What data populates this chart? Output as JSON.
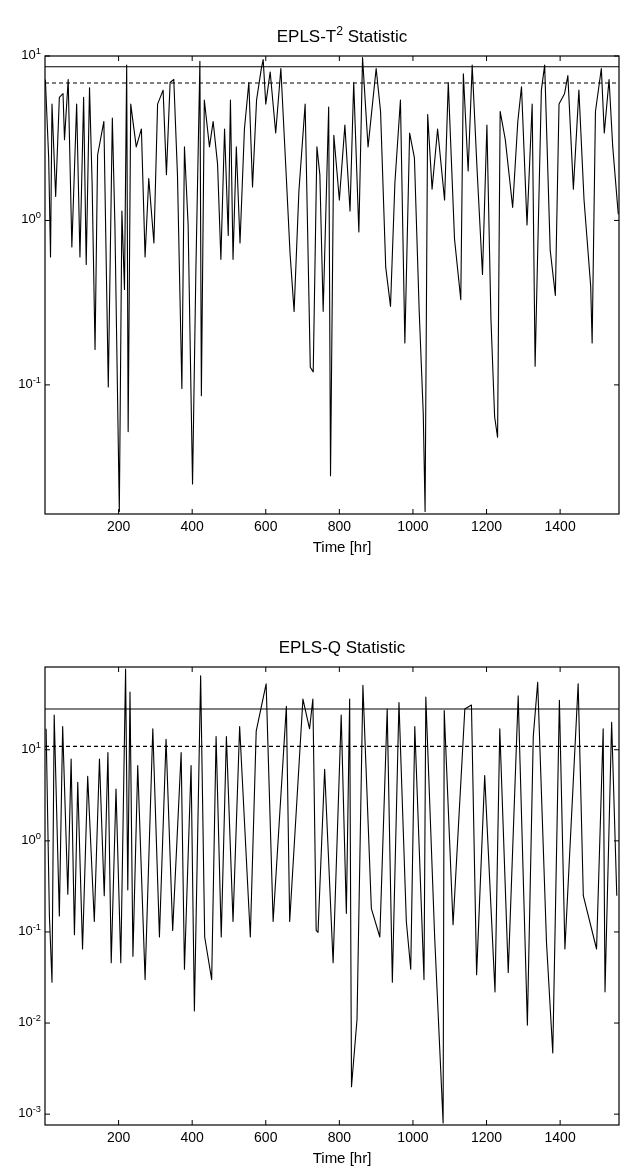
{
  "chart_data": [
    {
      "type": "line",
      "title": "EPLS-T$^{2}$ Statistic",
      "xlabel": "Time [hr]",
      "log": "y",
      "xlim": [
        0,
        1560
      ],
      "ylim": [
        0.0164,
        10
      ],
      "xticks": [
        200,
        400,
        600,
        800,
        1000,
        1200,
        1400
      ],
      "yticks": [
        {
          "value": 0.1,
          "label": "10$^{-1}$"
        },
        {
          "value": 1,
          "label": "10$^{0}$"
        },
        {
          "value": 10,
          "label": "10$^{1}$"
        }
      ],
      "grid": false,
      "marker": "none",
      "ref_lines": [
        {
          "axis": "y",
          "value": 8.6,
          "line_style": "solid",
          "color": "#000000"
        },
        {
          "axis": "y",
          "value": 6.85,
          "line_style": "dashed",
          "color": "#000000"
        }
      ],
      "series": [
        {
          "color": "#000000",
          "x": [
            1,
            10,
            15,
            19,
            29,
            39,
            49,
            53,
            63,
            73,
            86,
            95,
            105,
            112,
            121,
            128,
            136,
            143,
            160,
            172,
            183,
            190,
            202,
            209,
            216,
            222,
            226,
            233,
            248,
            262,
            272,
            282,
            296,
            306,
            321,
            330,
            340,
            350,
            360,
            372,
            379,
            389,
            401,
            410,
            421,
            425,
            433,
            447,
            457,
            469,
            478,
            488,
            498,
            504,
            511,
            520,
            530,
            542,
            554,
            564,
            575,
            588,
            593,
            600,
            612,
            627,
            641,
            656,
            666,
            677,
            690,
            707,
            721,
            729,
            739,
            747,
            756,
            771,
            776,
            785,
            800,
            815,
            829,
            839,
            853,
            863,
            878,
            900,
            912,
            926,
            939,
            951,
            966,
            978,
            991,
            1004,
            1017,
            1028,
            1033,
            1040,
            1052,
            1067,
            1086,
            1096,
            1113,
            1130,
            1137,
            1150,
            1161,
            1174,
            1189,
            1201,
            1212,
            1222,
            1230,
            1237,
            1251,
            1271,
            1285,
            1295,
            1310,
            1324,
            1332,
            1349,
            1358,
            1373,
            1387,
            1397,
            1412,
            1421,
            1436,
            1451,
            1465,
            1483,
            1487,
            1496,
            1512,
            1520,
            1533,
            1543,
            1558
          ],
          "values": [
            7.2,
            2.4,
            0.6,
            5.1,
            1.4,
            5.6,
            5.9,
            3.1,
            7.2,
            0.69,
            5.1,
            0.6,
            5.6,
            0.54,
            6.4,
            1.7,
            0.164,
            2.5,
            4.0,
            0.097,
            4.2,
            0.94,
            0.017,
            1.14,
            0.38,
            8.8,
            0.052,
            5.1,
            2.8,
            3.6,
            0.6,
            1.8,
            0.73,
            5.1,
            6.2,
            1.9,
            6.9,
            7.2,
            1.9,
            0.095,
            2.8,
            0.94,
            0.025,
            0.49,
            9.3,
            0.086,
            5.4,
            2.8,
            4.0,
            2.2,
            0.58,
            3.6,
            0.81,
            5.4,
            0.58,
            2.8,
            0.73,
            3.6,
            6.9,
            1.6,
            5.4,
            8.4,
            9.5,
            5.1,
            8.0,
            3.4,
            8.4,
            1.8,
            0.63,
            0.28,
            1.5,
            5.1,
            0.128,
            0.12,
            2.8,
            1.9,
            0.28,
            4.9,
            0.028,
            3.3,
            1.33,
            3.8,
            1.14,
            6.9,
            0.85,
            9.8,
            2.8,
            8.4,
            4.6,
            0.52,
            0.3,
            1.7,
            5.4,
            0.18,
            3.4,
            2.4,
            0.28,
            0.067,
            0.017,
            4.4,
            1.55,
            3.6,
            1.33,
            6.9,
            0.77,
            0.33,
            7.8,
            2.0,
            8.8,
            2.1,
            0.47,
            3.8,
            0.25,
            0.064,
            0.048,
            4.6,
            3.1,
            1.2,
            4.0,
            6.5,
            0.94,
            5.1,
            0.13,
            6.2,
            8.8,
            0.66,
            0.35,
            5.1,
            5.9,
            7.6,
            1.55,
            6.2,
            1.33,
            0.4,
            0.18,
            4.6,
            8.4,
            3.4,
            7.2,
            2.8,
            1.09
          ]
        }
      ]
    },
    {
      "type": "line",
      "title": "EPLS-Q Statistic",
      "xlabel": "Time [hr]",
      "log": "y",
      "xlim": [
        0,
        1560
      ],
      "ylim": [
        0.00076,
        81
      ],
      "xticks": [
        200,
        400,
        600,
        800,
        1000,
        1200,
        1400
      ],
      "yticks": [
        {
          "value": 0.001,
          "label": "10$^{-3}$"
        },
        {
          "value": 0.01,
          "label": "10$^{-2}$"
        },
        {
          "value": 0.1,
          "label": "10$^{-1}$"
        },
        {
          "value": 1,
          "label": "10$^{0}$"
        },
        {
          "value": 10,
          "label": "10$^{1}$"
        }
      ],
      "grid": false,
      "marker": "none",
      "ref_lines": [
        {
          "axis": "y",
          "value": 28,
          "line_style": "solid",
          "color": "#000000"
        },
        {
          "axis": "y",
          "value": 10.9,
          "line_style": "dashed",
          "color": "#000000"
        }
      ],
      "series": [
        {
          "color": "#000000",
          "x": [
            3,
            12,
            19,
            25,
            39,
            48,
            62,
            71,
            80,
            89,
            102,
            116,
            134,
            148,
            161,
            171,
            180,
            193,
            206,
            219,
            225,
            231,
            239,
            252,
            272,
            293,
            311,
            329,
            347,
            370,
            379,
            397,
            406,
            423,
            434,
            453,
            465,
            479,
            493,
            511,
            529,
            558,
            574,
            601,
            620,
            656,
            665,
            701,
            719,
            728,
            737,
            742,
            760,
            783,
            805,
            819,
            828,
            833,
            848,
            864,
            887,
            910,
            930,
            944,
            962,
            982,
            994,
            1005,
            1030,
            1035,
            1059,
            1082,
            1085,
            1109,
            1141,
            1159,
            1173,
            1195,
            1223,
            1236,
            1259,
            1286,
            1311,
            1327,
            1339,
            1363,
            1380,
            1398,
            1413,
            1449,
            1463,
            1499,
            1517,
            1522,
            1540,
            1554
          ],
          "values": [
            17,
            0.15,
            0.028,
            24,
            0.15,
            18,
            0.26,
            7.9,
            0.093,
            4.4,
            0.065,
            5.1,
            0.13,
            7.9,
            0.25,
            9.3,
            0.046,
            3.7,
            0.046,
            77,
            0.29,
            43,
            0.054,
            6.7,
            0.03,
            17,
            0.088,
            13,
            0.104,
            9.3,
            0.039,
            6.7,
            0.0136,
            65,
            0.088,
            0.03,
            14,
            0.088,
            14,
            0.13,
            18,
            0.088,
            16,
            53,
            0.13,
            30,
            0.13,
            36,
            17,
            36,
            0.104,
            0.099,
            6.1,
            0.046,
            24,
            0.16,
            36,
            0.002,
            0.011,
            51,
            0.18,
            0.088,
            28,
            0.028,
            33,
            0.13,
            0.039,
            18,
            0.03,
            38,
            0.088,
            0.0008,
            27,
            0.12,
            28,
            31,
            0.034,
            5.2,
            0.022,
            17,
            0.036,
            39,
            0.0095,
            14,
            55,
            0.076,
            0.0047,
            35,
            0.065,
            53,
            0.25,
            0.065,
            17,
            0.022,
            20,
            0.25
          ]
        }
      ]
    }
  ]
}
